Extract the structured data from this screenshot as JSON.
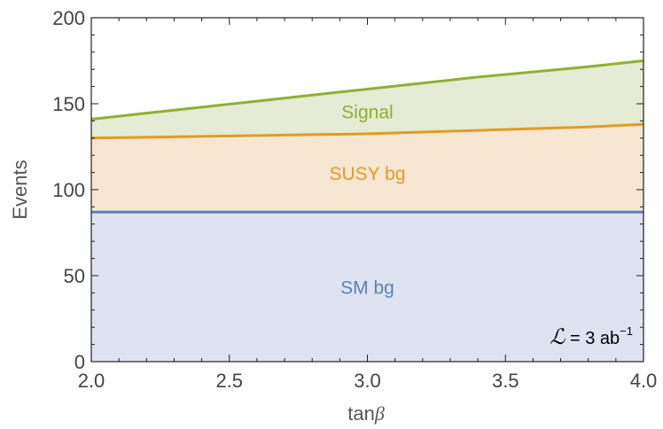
{
  "chart_data": {
    "type": "area",
    "x": [
      2.0,
      2.2,
      2.4,
      2.6,
      2.8,
      3.0,
      3.2,
      3.4,
      3.6,
      3.8,
      4.0
    ],
    "series": [
      {
        "name": "SM bg",
        "values": [
          87,
          87,
          87,
          87,
          87,
          87,
          87,
          87,
          87,
          87,
          87
        ],
        "color": "#5e81b5",
        "fill": "#dfe3f1"
      },
      {
        "name": "SUSY bg",
        "values": [
          130,
          130.5,
          131,
          131.5,
          132,
          132.5,
          133.5,
          134.5,
          135.5,
          136.5,
          138
        ],
        "color": "#e19c24",
        "fill": "#f6e6d2"
      },
      {
        "name": "Signal",
        "values": [
          141,
          144.5,
          148,
          151.5,
          155,
          158.5,
          162,
          165.5,
          168.5,
          171.5,
          175
        ],
        "color": "#8fb032",
        "fill": "#e5ebd4"
      }
    ],
    "series_label_x": 3.0,
    "xlim": [
      2.0,
      4.0
    ],
    "ylim": [
      0,
      200
    ],
    "xticks": [
      "2.0",
      "2.5",
      "3.0",
      "3.5",
      "4.0"
    ],
    "yticks": [
      "0",
      "50",
      "100",
      "150",
      "200"
    ],
    "xlabel": "tan",
    "xlabel_symbol": "β",
    "ylabel": "Events",
    "annotation": {
      "symbol": "ℒ",
      "text": " = 3 ab",
      "superscript": "−1"
    },
    "grid": false
  }
}
